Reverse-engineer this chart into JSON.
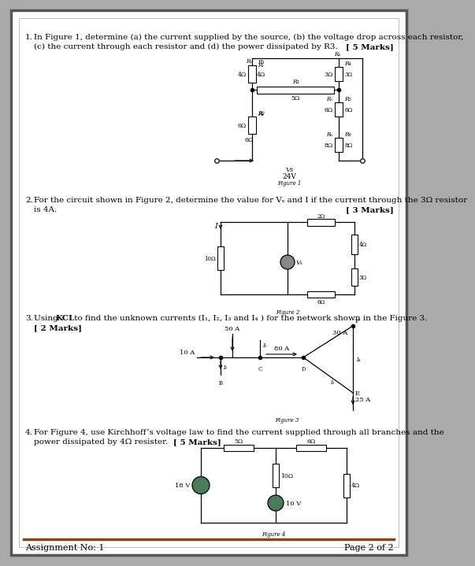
{
  "footer_left": "Assignment No: 1",
  "footer_right": "Page 2 of 2",
  "footer_line_color": "#8B4513",
  "q1_line1": "In Figure 1, determine (a) the current supplied by the source, (b) the voltage drop across each resistor,",
  "q1_line2": "(c) the current through each resistor and (d) the power dissipated by R3.",
  "q1_marks": "[ 5 Marks]",
  "q2_line1": "For the circuit shown in Figure 2, determine the value for Vₛ and I if the current through the 3Ω resistor",
  "q2_line2": "is 4A.",
  "q2_marks": "[ 3 Marks]",
  "q3_line1a": "Using ",
  "q3_line1b": "KCL",
  "q3_line1c": " to find the unknown currents (I₁, I₂, I₃ and I₄ ) for the network shown in the Figure 3.",
  "q3_marks": "[ 2 Marks]",
  "q4_line1": "For Figure 4, use Kirchhoff’s voltage law to find the current supplied through all branches and the",
  "q4_line2": "power dissipated by 4Ω resister.",
  "q4_marks": "[ 5 Marks]"
}
